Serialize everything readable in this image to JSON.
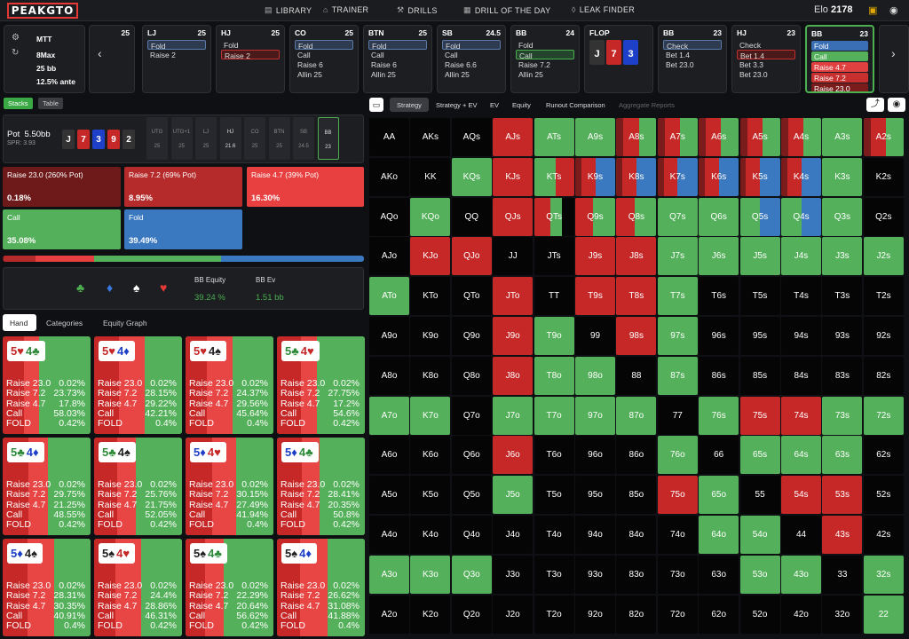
{
  "nav": {
    "logo": "PEAKGTO",
    "library": "LIBRARY",
    "trainer": "TRAINER",
    "drills": "DRILLS",
    "dotd": "DRILL OF THE DAY",
    "leak": "LEAK FINDER",
    "elo_label": "Elo",
    "elo": "2178"
  },
  "info": {
    "format": "MTT",
    "table": "8Max",
    "stack": "25 bb",
    "ante": "12.5% ante"
  },
  "seats": [
    {
      "pos": "",
      "stack": "25",
      "actions": []
    },
    {
      "pos": "LJ",
      "stack": "25",
      "actions": [
        "Fold",
        "Raise 2"
      ]
    },
    {
      "pos": "HJ",
      "stack": "25",
      "actions": [
        "Fold",
        "Raise 2"
      ]
    },
    {
      "pos": "CO",
      "stack": "25",
      "actions": [
        "Fold",
        "Call",
        "Raise 6",
        "Allin 25"
      ]
    },
    {
      "pos": "BTN",
      "stack": "25",
      "actions": [
        "Fold",
        "Call",
        "Raise 6",
        "Allin 25"
      ]
    },
    {
      "pos": "SB",
      "stack": "24.5",
      "actions": [
        "Fold",
        "Call",
        "Raise 6.6",
        "Allin 25"
      ]
    },
    {
      "pos": "BB",
      "stack": "24",
      "actions": [
        "Fold",
        "Call",
        "Raise 7.2",
        "Allin 25"
      ]
    },
    {
      "pos": "FLOP",
      "stack": "",
      "actions": []
    },
    {
      "pos": "BB",
      "stack": "23",
      "actions": [
        "Check",
        "Bet 1.4",
        "Bet 23.0"
      ]
    },
    {
      "pos": "HJ",
      "stack": "23",
      "actions": [
        "Check",
        "Bet 1.4",
        "Bet 3.3",
        "Bet 23.0"
      ]
    },
    {
      "pos": "BB",
      "stack": "23",
      "actions": [
        "Fold",
        "Call",
        "Raise 4.7",
        "Raise 7.2",
        "Raise 23.0"
      ]
    }
  ],
  "flop": [
    {
      "rank": "J",
      "color": "#333"
    },
    {
      "rank": "7",
      "color": "#c62828"
    },
    {
      "rank": "3",
      "color": "#1e40c8"
    }
  ],
  "left_tabs": {
    "stacks": "Stacks",
    "table": "Table"
  },
  "pot": {
    "label": "Pot",
    "value": "5.50bb",
    "spr": "SPR: 3.93"
  },
  "hand": [
    {
      "rank": "J",
      "color": "#333"
    },
    {
      "rank": "7",
      "color": "#c62828"
    },
    {
      "rank": "3",
      "color": "#1e40c8"
    },
    {
      "rank": "9",
      "color": "#c62828"
    },
    {
      "rank": "2",
      "color": "#333"
    }
  ],
  "positions": [
    {
      "n": "UTG",
      "s": "25"
    },
    {
      "n": "UTG+1",
      "s": "25"
    },
    {
      "n": "LJ",
      "s": "25"
    },
    {
      "n": "HJ",
      "s": "21.6"
    },
    {
      "n": "CO",
      "s": "25"
    },
    {
      "n": "BTN",
      "s": "25"
    },
    {
      "n": "SB",
      "s": "24.5"
    },
    {
      "n": "BB",
      "s": "23"
    }
  ],
  "actions": [
    {
      "label": "Raise 23.0 (260% Pot)",
      "value": "0.18%",
      "color": "#6e1a1a"
    },
    {
      "label": "Raise 7.2 (69% Pot)",
      "value": "8.95%",
      "color": "#b52a2a"
    },
    {
      "label": "Raise 4.7 (39% Pot)",
      "value": "16.30%",
      "color": "#e84040"
    },
    {
      "label": "Call",
      "value": "35.08%",
      "color": "#54b05a"
    },
    {
      "label": "Fold",
      "value": "39.49%",
      "color": "#3a78c0"
    }
  ],
  "freq": [
    0.18,
    8.95,
    16.3,
    35.08,
    39.49
  ],
  "equity": {
    "eq_label": "BB Equity",
    "eq": "39.24 %",
    "ev_label": "BB Ev",
    "ev": "1.51 bb",
    "suits": [
      "♣",
      "♦",
      "♠",
      "♥"
    ]
  },
  "subtabs": {
    "hand": "Hand",
    "categories": "Categories",
    "graph": "Equity Graph"
  },
  "combos": [
    {
      "c1": "5♥",
      "c2": "4♣",
      "vals": [
        "0.02%",
        "23.73%",
        "17.8%",
        "58.03%",
        "0.42%"
      ],
      "mix": [
        0.02,
        23.73,
        17.8,
        58.03,
        0.42
      ]
    },
    {
      "c1": "5♥",
      "c2": "4♦",
      "vals": [
        "0.02%",
        "28.15%",
        "29.22%",
        "42.21%",
        "0.4%"
      ],
      "mix": [
        0.02,
        28.15,
        29.22,
        42.21,
        0.4
      ]
    },
    {
      "c1": "5♥",
      "c2": "4♠",
      "vals": [
        "0.02%",
        "24.37%",
        "29.56%",
        "45.64%",
        "0.4%"
      ],
      "mix": [
        0.02,
        24.37,
        29.56,
        45.64,
        0.4
      ]
    },
    {
      "c1": "5♣",
      "c2": "4♥",
      "vals": [
        "0.02%",
        "27.75%",
        "17.2%",
        "54.6%",
        "0.42%"
      ],
      "mix": [
        0.02,
        27.75,
        17.2,
        54.6,
        0.42
      ]
    },
    {
      "c1": "5♣",
      "c2": "4♦",
      "vals": [
        "0.02%",
        "29.75%",
        "21.25%",
        "48.55%",
        "0.42%"
      ],
      "mix": [
        0.02,
        29.75,
        21.25,
        48.55,
        0.42
      ]
    },
    {
      "c1": "5♣",
      "c2": "4♠",
      "vals": [
        "0.02%",
        "25.76%",
        "21.75%",
        "52.05%",
        "0.42%"
      ],
      "mix": [
        0.02,
        25.76,
        21.75,
        52.05,
        0.42
      ]
    },
    {
      "c1": "5♦",
      "c2": "4♥",
      "vals": [
        "0.02%",
        "30.15%",
        "27.49%",
        "41.94%",
        "0.4%"
      ],
      "mix": [
        0.02,
        30.15,
        27.49,
        41.94,
        0.4
      ]
    },
    {
      "c1": "5♦",
      "c2": "4♣",
      "vals": [
        "0.02%",
        "28.41%",
        "20.35%",
        "50.8%",
        "0.42%"
      ],
      "mix": [
        0.02,
        28.41,
        20.35,
        50.8,
        0.42
      ]
    },
    {
      "c1": "5♦",
      "c2": "4♠",
      "vals": [
        "0.02%",
        "28.31%",
        "30.35%",
        "40.91%",
        "0.4%"
      ],
      "mix": [
        0.02,
        28.31,
        30.35,
        40.91,
        0.4
      ]
    },
    {
      "c1": "5♠",
      "c2": "4♥",
      "vals": [
        "0.02%",
        "24.4%",
        "28.86%",
        "46.31%",
        "0.42%"
      ],
      "mix": [
        0.02,
        24.4,
        28.86,
        46.31,
        0.42
      ]
    },
    {
      "c1": "5♠",
      "c2": "4♣",
      "vals": [
        "0.02%",
        "22.29%",
        "20.64%",
        "56.62%",
        "0.42%"
      ],
      "mix": [
        0.02,
        22.29,
        20.64,
        56.62,
        0.42
      ]
    },
    {
      "c1": "5♠",
      "c2": "4♦",
      "vals": [
        "0.02%",
        "26.62%",
        "31.08%",
        "41.88%",
        "0.4%"
      ],
      "mix": [
        0.02,
        26.62,
        31.08,
        41.88,
        0.4
      ]
    }
  ],
  "combo_rows": [
    "Raise 23.0",
    "Raise 7.2",
    "Raise 4.7",
    "Call",
    "FOLD"
  ],
  "right_tabs": {
    "strategy": "Strategy",
    "strat_ev": "Strategy + EV",
    "ev": "EV",
    "equity": "Equity",
    "runout": "Runout Comparison",
    "agg": "Aggregate Reports"
  },
  "ranks": [
    "A",
    "K",
    "Q",
    "J",
    "T",
    "9",
    "8",
    "7",
    "6",
    "5",
    "4",
    "3",
    "2"
  ],
  "grid": {
    "AKs": "b",
    "AQs": "b",
    "AJs": "R",
    "ATs": "g",
    "A9s": "g",
    "A8s": "rR",
    "A7s": "rR",
    "A6s": "rR",
    "A5s": "rR",
    "A4s": "rR",
    "A3s": "g",
    "A2s": "rR",
    "AKo": "b",
    "KK": "b",
    "KQs": "g",
    "KJs": "R",
    "KTs": "gR",
    "K9s": "rb",
    "K8s": "rb",
    "K7s": "rb",
    "K6s": "rb",
    "K5s": "rb",
    "K4s": "rb",
    "K3s": "g",
    "K2s": "b",
    "AQo": "b",
    "KQo": "g",
    "QQ": "b",
    "QJs": "R",
    "QTs": "mix",
    "Q9s": "Rg",
    "Q8s": "Rg",
    "Q7s": "g",
    "Q6s": "g",
    "Q5s": "gb",
    "Q4s": "gb",
    "Q3s": "g",
    "Q2s": "b",
    "AJo": "b",
    "KJo": "R",
    "QJo": "R",
    "JJ": "b",
    "JTs": "k",
    "J9s": "R",
    "J8s": "R",
    "J7s": "g",
    "J6s": "g",
    "J5s": "g",
    "J4s": "g",
    "J3s": "g",
    "J2s": "g",
    "ATo": "g",
    "KTo": "b",
    "QTo": "b",
    "JTo": "R",
    "TT": "b",
    "T9s": "R",
    "T8s": "R",
    "T7s": "g",
    "T6s": "b",
    "T5s": "b",
    "T4s": "b",
    "T3s": "b",
    "T2s": "b",
    "A9o": "b",
    "K9o": "b",
    "Q9o": "b",
    "J9o": "R",
    "T9o": "g",
    "99": "b",
    "98s": "R",
    "97s": "g",
    "96s": "b",
    "95s": "b",
    "94s": "b",
    "93s": "b",
    "92s": "b",
    "A8o": "b",
    "K8o": "b",
    "Q8o": "b",
    "J8o": "R",
    "T8o": "g",
    "98o": "g",
    "88": "b",
    "87s": "g",
    "86s": "b",
    "85s": "b",
    "84s": "b",
    "83s": "b",
    "82s": "b",
    "A7o": "g",
    "K7o": "g",
    "Q7o": "b",
    "J7o": "g",
    "T7o": "g",
    "97o": "g",
    "87o": "g",
    "77": "b",
    "76s": "g",
    "75s": "R",
    "74s": "R",
    "73s": "g",
    "72s": "g",
    "A6o": "b",
    "K6o": "b",
    "Q6o": "b",
    "J6o": "R",
    "T6o": "k",
    "96o": "b",
    "86o": "b",
    "76o": "g",
    "66": "b",
    "65s": "g",
    "64s": "g",
    "63s": "g",
    "62s": "b",
    "A5o": "b",
    "K5o": "b",
    "Q5o": "b",
    "J5o": "g",
    "T5o": "k",
    "95o": "k",
    "85o": "b",
    "75o": "R",
    "65o": "g",
    "55": "b",
    "54s": "R",
    "53s": "R",
    "52s": "b",
    "A4o": "b",
    "K4o": "b",
    "Q4o": "b",
    "J4o": "k",
    "T4o": "k",
    "94o": "k",
    "84o": "k",
    "74o": "k",
    "64o": "g",
    "54o": "g",
    "44": "b",
    "43s": "R",
    "42s": "b",
    "A3o": "g",
    "K3o": "g",
    "Q3o": "g",
    "J3o": "k",
    "T3o": "k",
    "93o": "k",
    "83o": "k",
    "73o": "k",
    "63o": "k",
    "53o": "g",
    "43o": "g",
    "33": "b",
    "32s": "g",
    "A2o": "b",
    "K2o": "b",
    "Q2o": "k",
    "J2o": "k",
    "T2o": "k",
    "92o": "k",
    "82o": "k",
    "72o": "k",
    "62o": "k",
    "52o": "k",
    "42o": "k",
    "32o": "k",
    "22": "g"
  },
  "colors": {
    "red_dark": "#7a1c1c",
    "red": "#c62828",
    "red_light": "#e84545",
    "green": "#54b05a",
    "blue": "#3a78c0",
    "black": "#050505"
  }
}
